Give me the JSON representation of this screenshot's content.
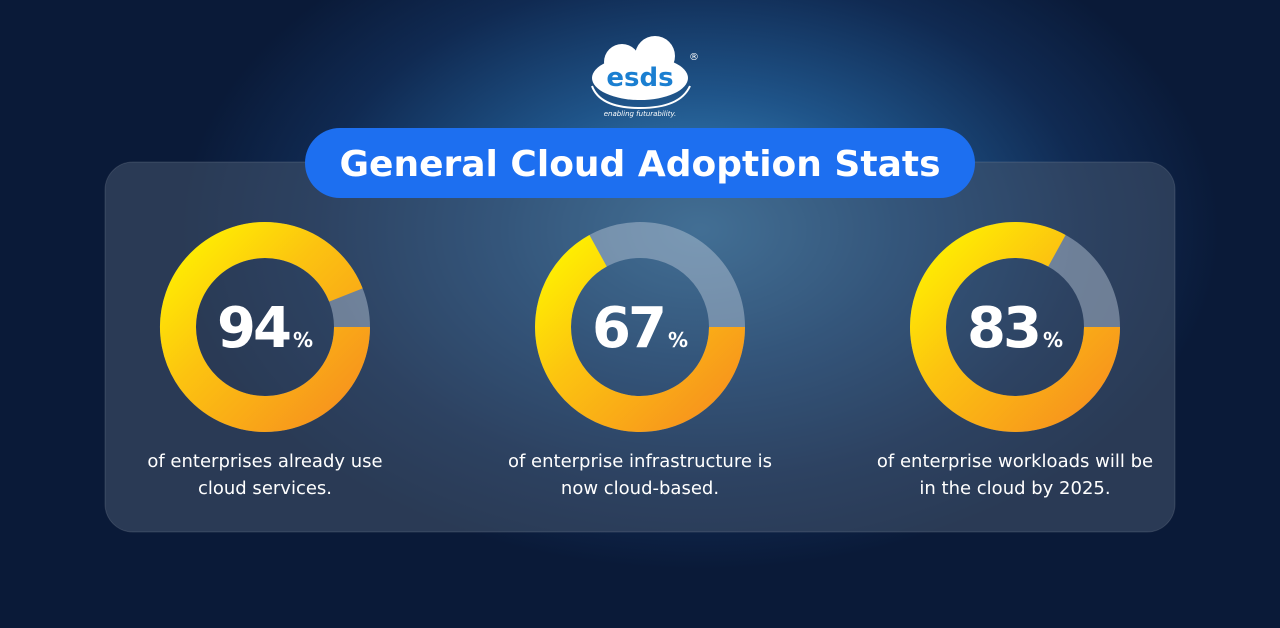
{
  "logo": {
    "name": "esds",
    "registered": "®",
    "tagline": "enabling futurability."
  },
  "title": "General Cloud Adoption Stats",
  "chart_data": [
    {
      "type": "donut",
      "values": [
        94
      ],
      "unit": "%",
      "ylim": [
        0,
        100
      ],
      "caption": "of enterprises already use cloud services."
    },
    {
      "type": "donut",
      "values": [
        67
      ],
      "unit": "%",
      "ylim": [
        0,
        100
      ],
      "caption": "of enterprise infrastructure is now cloud-based."
    },
    {
      "type": "donut",
      "values": [
        83
      ],
      "unit": "%",
      "ylim": [
        0,
        100
      ],
      "caption": "of enterprise workloads will be in the cloud by 2025."
    }
  ]
}
